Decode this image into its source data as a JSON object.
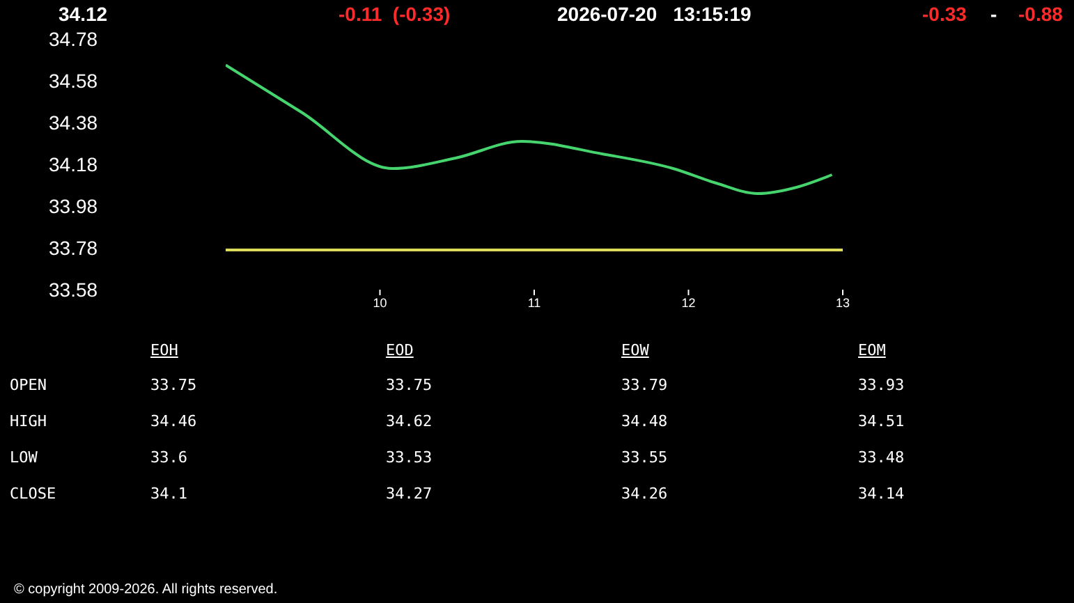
{
  "chart_data": [
    {
      "type": "line",
      "x": [
        9.0,
        9.49,
        10.08,
        10.49,
        10.92,
        11.44,
        11.9,
        12.18,
        12.45,
        12.7,
        12.93
      ],
      "series": [
        {
          "color": "#46d46e",
          "values": [
            34.655,
            34.43,
            34.16,
            34.21,
            34.29,
            34.23,
            34.16,
            34.09,
            34.04,
            34.07,
            34.13
          ]
        }
      ],
      "xlim": [
        9,
        13
      ],
      "xticks": [
        10,
        11,
        12,
        13
      ],
      "ylim": [
        33.58,
        34.78
      ],
      "yticks": [
        33.58,
        33.78,
        33.98,
        34.18,
        34.38,
        34.58,
        34.78
      ],
      "ref_lines": [
        {
          "axis": "y",
          "value": 33.77,
          "color": "#dcdc5a"
        }
      ],
      "legend": false,
      "marker": "none",
      "annotations": [
        "34.12",
        "-0.11  (-0.33)",
        "2026-07-20   13:15:19",
        "-0.33",
        "-",
        "-0.88",
        "© copyright 2009-2026. All rights reserved."
      ]
    },
    {
      "type": "other",
      "categories": [
        "OPEN",
        "HIGH",
        "LOW",
        "CLOSE"
      ],
      "data_labels": true,
      "series": [
        {
          "name": "EOH",
          "values": [
            33.75,
            34.46,
            33.6,
            34.1
          ]
        },
        {
          "name": "EOD",
          "values": [
            33.75,
            34.62,
            33.53,
            34.27
          ]
        },
        {
          "name": "EOW",
          "values": [
            33.79,
            34.48,
            33.55,
            34.26
          ]
        },
        {
          "name": "EOM",
          "values": [
            33.93,
            34.51,
            33.48,
            34.14
          ]
        }
      ]
    }
  ]
}
